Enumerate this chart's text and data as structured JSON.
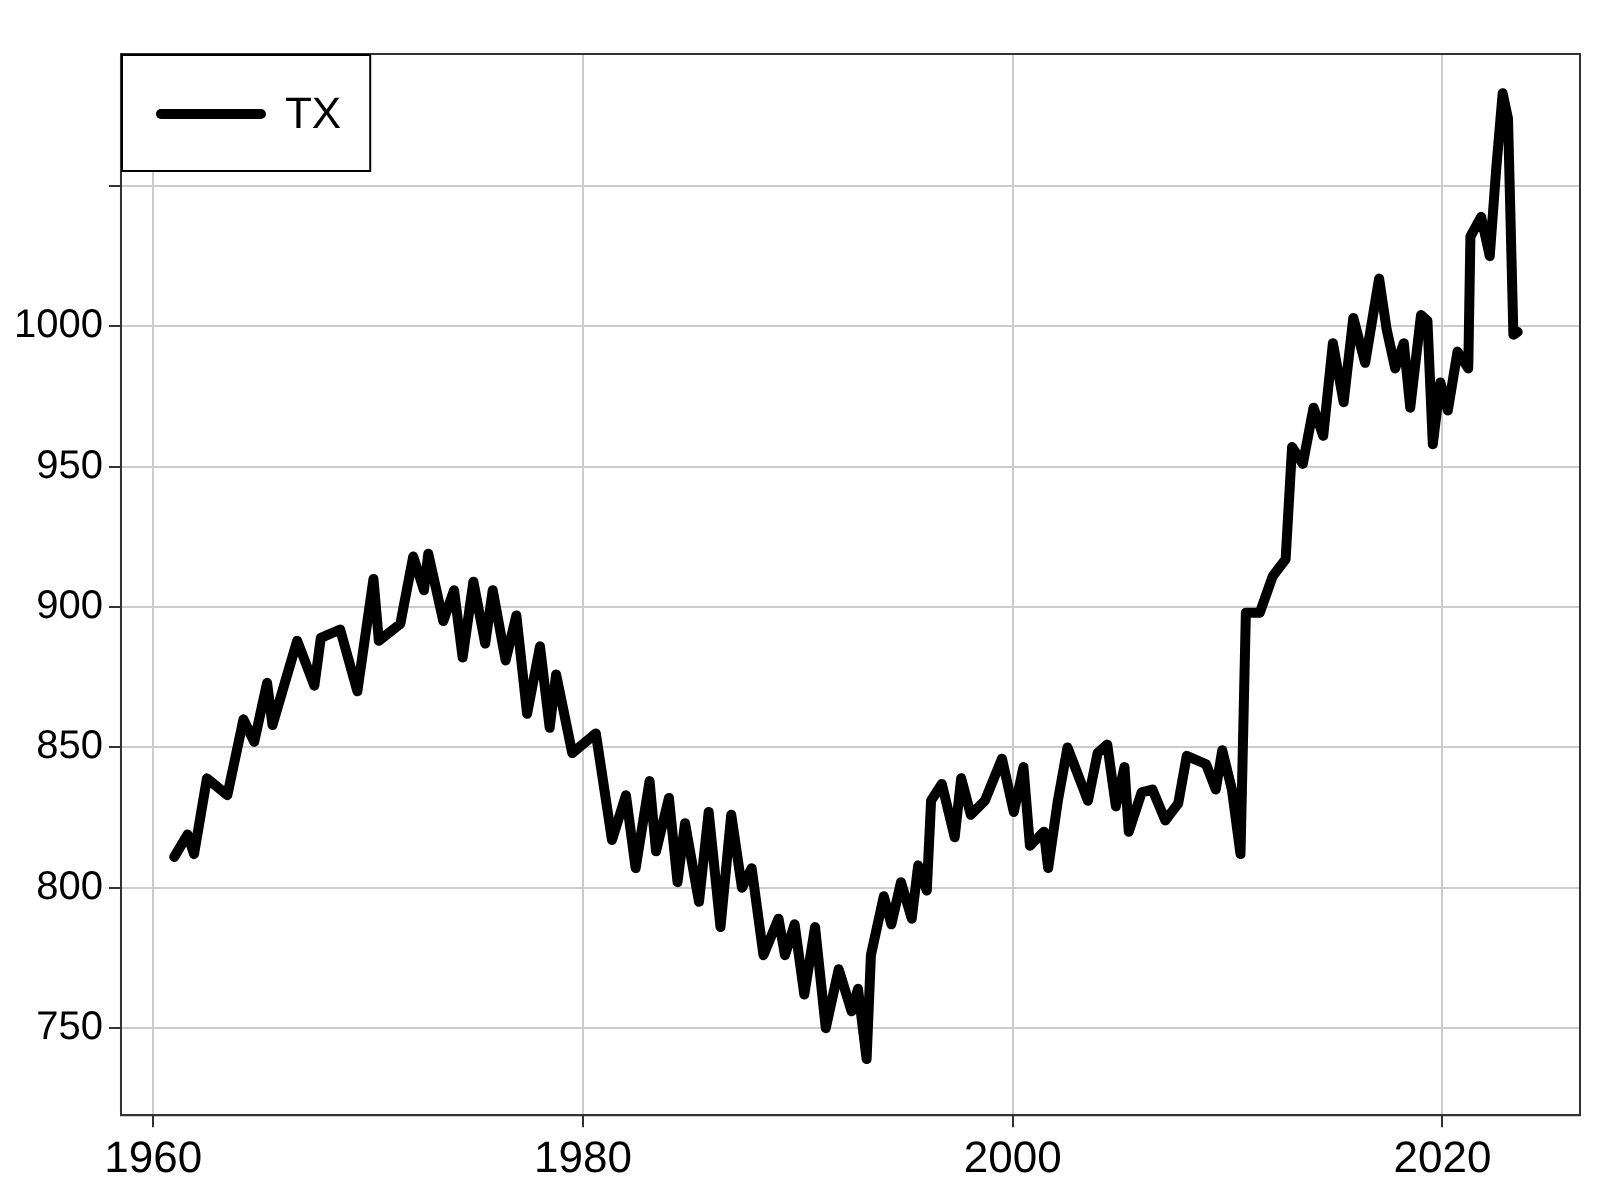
{
  "chart_data": {
    "type": "line",
    "legend": "top left",
    "grid": true,
    "xlim": [
      1958.5,
      2026.4
    ],
    "xticks": [
      1960,
      1980,
      2000,
      2020
    ],
    "ylim": [
      719,
      1097
    ],
    "yticks": [
      750,
      800,
      850,
      900,
      950,
      1000,
      {
        "value": 1050,
        "label": null
      }
    ],
    "series": [
      {
        "name": "TX",
        "color": "#000000",
        "x": [
          1960.98,
          1961.6,
          1961.9,
          1962.5,
          1963.45,
          1964.2,
          1964.7,
          1965.3,
          1965.55,
          1966.7,
          1967.5,
          1967.8,
          1968.7,
          1969.5,
          1970.25,
          1970.5,
          1971.5,
          1972.1,
          1972.6,
          1972.8,
          1973.5,
          1974.0,
          1974.4,
          1974.9,
          1975.45,
          1975.8,
          1976.4,
          1976.9,
          1977.4,
          1978.0,
          1978.45,
          1978.75,
          1979.5,
          1980.6,
          1981.35,
          1982.0,
          1982.45,
          1983.1,
          1983.4,
          1984.0,
          1984.4,
          1984.75,
          1985.4,
          1985.85,
          1986.4,
          1986.9,
          1987.4,
          1987.85,
          1988.4,
          1989.1,
          1989.4,
          1989.85,
          1990.3,
          1990.8,
          1991.3,
          1991.9,
          1992.5,
          1992.8,
          1993.2,
          1993.4,
          1994.0,
          1994.35,
          1994.8,
          1995.3,
          1995.6,
          1996.0,
          1996.2,
          1996.7,
          1997.3,
          1997.6,
          1998.05,
          1998.7,
          1999.5,
          2000.05,
          2000.5,
          2000.8,
          2001.45,
          2001.65,
          2002.1,
          2002.55,
          2003.25,
          2003.5,
          2003.95,
          2004.4,
          2004.8,
          2005.2,
          2005.4,
          2006.0,
          2006.5,
          2007.1,
          2007.7,
          2008.1,
          2009.0,
          2009.45,
          2009.75,
          2010.2,
          2010.6,
          2010.85,
          2011.5,
          2012.1,
          2012.7,
          2013.0,
          2013.5,
          2014.0,
          2014.45,
          2014.9,
          2015.4,
          2015.85,
          2016.4,
          2017.05,
          2017.4,
          2017.8,
          2018.2,
          2018.5,
          2019.0,
          2019.3,
          2019.55,
          2019.9,
          2020.25,
          2020.7,
          2021.2,
          2021.3,
          2021.8,
          2022.2,
          2022.5,
          2022.8,
          2023.05,
          2023.3,
          2023.5
        ],
        "values": [
          811,
          819,
          812,
          839,
          833,
          860,
          852,
          873,
          858,
          888,
          872,
          889,
          892,
          870,
          910,
          888,
          894,
          918,
          906,
          919,
          895,
          906,
          882,
          909,
          887,
          906,
          881,
          897,
          862,
          886,
          857,
          876,
          848,
          855,
          817,
          833,
          807,
          838,
          813,
          832,
          802,
          823,
          795,
          827,
          786,
          826,
          800,
          807,
          776,
          789,
          776,
          787,
          762,
          786,
          750,
          771,
          756,
          764,
          739,
          776,
          797,
          787,
          802,
          789,
          808,
          799,
          831,
          837,
          818,
          839,
          826,
          831,
          846,
          827,
          843,
          815,
          820,
          807,
          831,
          850,
          836,
          831,
          848,
          851,
          829,
          843,
          820,
          834,
          835,
          824,
          830,
          847,
          844,
          835,
          849,
          835,
          812,
          898,
          898,
          911,
          917,
          957,
          951,
          971,
          961,
          994,
          973,
          1003,
          987,
          1017,
          999,
          985,
          994,
          971,
          1004,
          1002,
          958,
          980,
          970,
          991,
          985,
          1032,
          1039,
          1025,
          1056,
          1083,
          1074,
          997,
          998
        ]
      }
    ]
  }
}
